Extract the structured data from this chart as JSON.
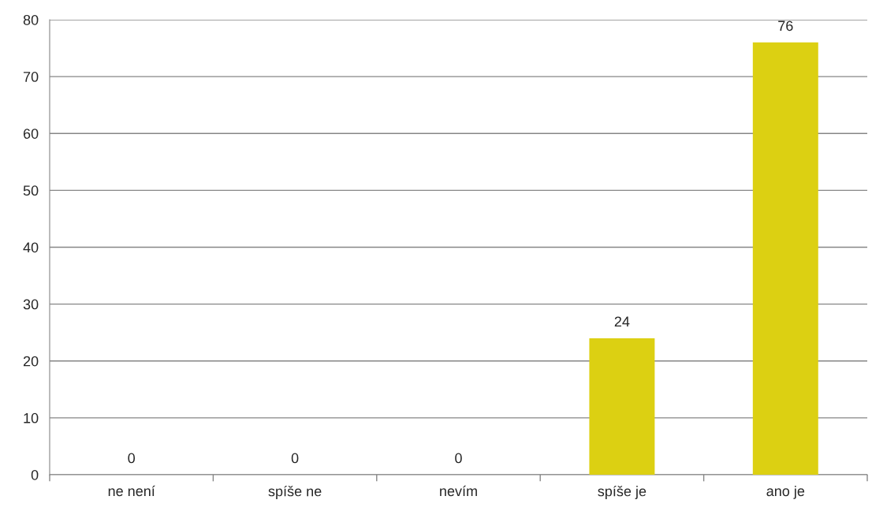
{
  "chart_data": {
    "type": "bar",
    "categories": [
      "ne není",
      "spíše ne",
      "nevím",
      "spíše je",
      "ano je"
    ],
    "values": [
      0,
      0,
      0,
      24,
      76
    ],
    "color": "#dcd012",
    "ylim": [
      0,
      80
    ],
    "yticks": [
      0,
      10,
      20,
      30,
      40,
      50,
      60,
      70,
      80
    ],
    "grid": "y",
    "data_labels": true
  }
}
